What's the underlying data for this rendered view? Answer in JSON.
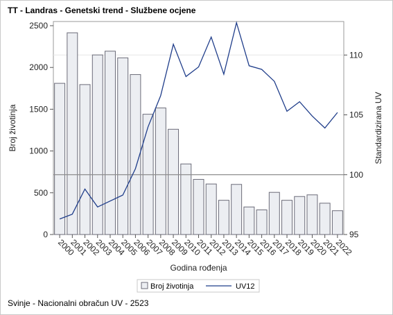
{
  "header": {
    "title": "TT - Landras - Genetski trend - Službene ocjene"
  },
  "footer": {
    "note": "Svinje - Nacionalni obračun UV - 2523"
  },
  "chart_data": {
    "type": "bar",
    "title": "TT - Landras - Genetski trend - Službene ocjene",
    "xlabel": "Godina rođenja",
    "ylabel": "Broj životinja",
    "y2label": "Standardizirana UV",
    "categories": [
      "2000",
      "2001",
      "2002",
      "2003",
      "2004",
      "2005",
      "2006",
      "2007",
      "2008",
      "2009",
      "2010",
      "2011",
      "2012",
      "2013",
      "2014",
      "2015",
      "2016",
      "2017",
      "2018",
      "2019",
      "2020",
      "2021",
      "2022"
    ],
    "ylim": [
      0,
      2550
    ],
    "yticks": [
      0,
      500,
      1000,
      1500,
      2000,
      2500
    ],
    "y2lim": [
      95,
      112.8
    ],
    "y2ticks": [
      95,
      100,
      105,
      110
    ],
    "reference_line": 100,
    "grid": false,
    "legend_position": "bottom",
    "series": [
      {
        "name": "Broj životinja",
        "type": "bar",
        "axis": "left",
        "color": "#eceef2",
        "values": [
          1810,
          2415,
          1795,
          2150,
          2195,
          2115,
          1915,
          1440,
          1515,
          1260,
          845,
          660,
          605,
          410,
          600,
          330,
          295,
          505,
          410,
          455,
          475,
          375,
          285
        ]
      },
      {
        "name": "UV12",
        "type": "line",
        "axis": "right",
        "color": "#1f3d8a",
        "values": [
          96.3,
          96.7,
          98.8,
          97.3,
          97.8,
          98.3,
          100.5,
          104.0,
          106.6,
          110.9,
          108.2,
          109.0,
          111.5,
          108.4,
          112.7,
          109.1,
          108.8,
          107.8,
          105.3,
          106.1,
          104.9,
          103.9,
          105.2
        ]
      }
    ]
  }
}
